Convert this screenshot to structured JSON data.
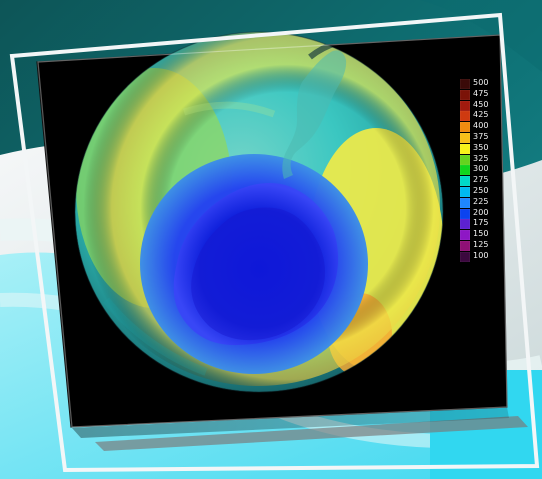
{
  "legend": {
    "labels": [
      "500",
      "475",
      "450",
      "425",
      "400",
      "375",
      "350",
      "325",
      "300",
      "275",
      "250",
      "225",
      "200",
      "175",
      "150",
      "125",
      "100"
    ],
    "colors": [
      "#3a0a08",
      "#7b1308",
      "#a11a0e",
      "#cf3a10",
      "#ef8c10",
      "#f8c019",
      "#f7f21a",
      "#64d31f",
      "#10d51d",
      "#00d8c8",
      "#00b9f0",
      "#1f86ff",
      "#0b43ef",
      "#5c21d1",
      "#8e17c5",
      "#8f1075",
      "#3b083e"
    ]
  }
}
